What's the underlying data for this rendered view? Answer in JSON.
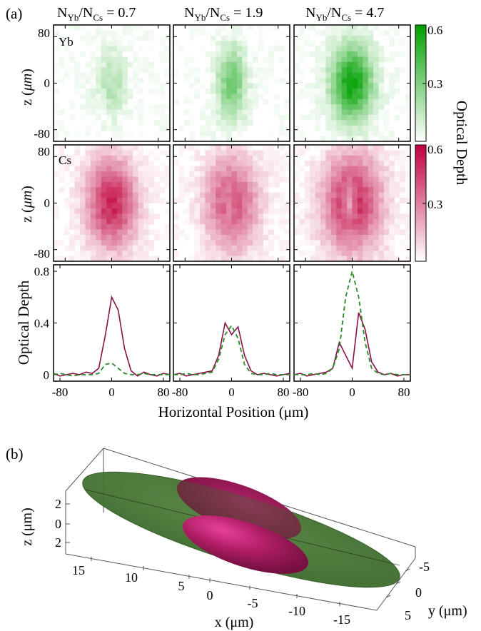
{
  "panel_a": {
    "label": "(a)",
    "column_headers": [
      {
        "ratio": "N",
        "sub1": "Yb",
        "slash": "/N",
        "sub2": "Cs",
        "value": " = 0.7"
      },
      {
        "ratio": "N",
        "sub1": "Yb",
        "slash": "/N",
        "sub2": "Cs",
        "value": " = 1.9"
      },
      {
        "ratio": "N",
        "sub1": "Yb",
        "slash": "/N",
        "sub2": "Cs",
        "value": " = 4.7"
      }
    ],
    "row_labels": {
      "yb": "Yb",
      "cs": "Cs"
    },
    "image_ylabel_prefix": "z (",
    "image_ylabel_mu": "μm",
    "image_ylabel_suffix": ")",
    "image_yticks": [
      "80",
      "0",
      "-80"
    ],
    "colorbar_label": "Optical Depth",
    "colorbar_ticks": [
      "0.6",
      "0.3"
    ],
    "colors": {
      "yb": "#00a000",
      "cs": "#c0003c",
      "profile_cs": "#8a1047",
      "profile_yb": "#2a8a2a"
    }
  },
  "chart_data": {
    "type": "line",
    "xlabel": "Horizontal Position (μm)",
    "ylabel": "Optical Depth",
    "xticks": [
      "-80",
      "0",
      "80"
    ],
    "yticks": [
      "0",
      "0.4",
      "0.8"
    ],
    "xlim": [
      -90,
      90
    ],
    "ylim": [
      -0.05,
      0.85
    ],
    "x": [
      -90,
      -80,
      -70,
      -60,
      -50,
      -40,
      -30,
      -20,
      -10,
      0,
      10,
      20,
      30,
      40,
      50,
      60,
      70,
      80,
      90
    ],
    "panels": [
      {
        "series": [
          {
            "style": "solid",
            "values": [
              0.01,
              -0.01,
              0.0,
              0.01,
              0.0,
              0.02,
              0.01,
              0.05,
              0.3,
              0.6,
              0.5,
              0.2,
              0.03,
              -0.01,
              0.02,
              0.0,
              -0.01,
              0.01,
              0.0
            ]
          },
          {
            "style": "dashed",
            "values": [
              0.0,
              0.01,
              0.0,
              -0.01,
              0.0,
              0.0,
              0.0,
              0.01,
              0.08,
              0.09,
              0.05,
              0.01,
              0.0,
              0.0,
              0.01,
              0.0,
              0.0,
              0.0,
              0.0
            ]
          }
        ]
      },
      {
        "series": [
          {
            "style": "solid",
            "values": [
              0.0,
              0.01,
              -0.01,
              0.0,
              0.01,
              0.02,
              0.03,
              0.15,
              0.4,
              0.31,
              0.37,
              0.15,
              0.03,
              0.0,
              0.01,
              0.0,
              -0.01,
              0.0,
              0.01
            ]
          },
          {
            "style": "dashed",
            "values": [
              0.0,
              0.0,
              0.01,
              0.0,
              0.0,
              0.01,
              0.02,
              0.12,
              0.31,
              0.38,
              0.28,
              0.08,
              0.01,
              0.0,
              0.0,
              0.01,
              0.0,
              0.0,
              0.0
            ]
          }
        ]
      },
      {
        "series": [
          {
            "style": "solid",
            "values": [
              0.0,
              0.01,
              -0.01,
              0.0,
              0.01,
              0.02,
              0.05,
              0.25,
              0.15,
              0.05,
              0.48,
              0.35,
              0.1,
              0.02,
              0.0,
              0.01,
              -0.01,
              0.0,
              0.0
            ]
          },
          {
            "style": "dashed",
            "values": [
              0.0,
              0.0,
              0.0,
              0.01,
              0.0,
              0.01,
              0.05,
              0.2,
              0.6,
              0.8,
              0.6,
              0.25,
              0.05,
              0.01,
              0.0,
              0.01,
              0.0,
              0.0,
              0.0
            ]
          }
        ]
      }
    ]
  },
  "panel_b": {
    "label": "(b)",
    "z_label": "z (μm)",
    "z_ticks": [
      "2",
      "0",
      "2"
    ],
    "x_label": "x (μm)",
    "x_ticks": [
      "15",
      "10",
      "5",
      "0",
      "-5",
      "-10",
      "-15"
    ],
    "y_label": "y (μm)",
    "y_ticks": [
      "-5",
      "0",
      "5"
    ]
  }
}
